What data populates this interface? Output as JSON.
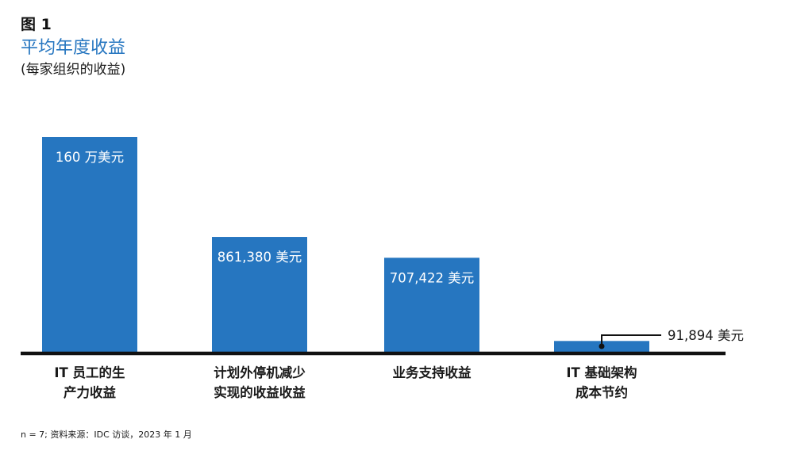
{
  "figure": {
    "label": "图 1",
    "title": "平均年度收益",
    "subtitle": "(每家组织的收益)",
    "footnote": "n = 7; 资料来源：IDC 访谈，2023 年 1 月"
  },
  "colors": {
    "bar": "#2676c0",
    "title": "#2676c0",
    "baseline": "#111111",
    "inside_label": "#ffffff",
    "outside_label": "#1a1a1a"
  },
  "chart_data": {
    "type": "bar",
    "title": "平均年度收益",
    "subtitle": "(每家组织的收益)",
    "categories": [
      [
        "IT 员工的生",
        "产力收益"
      ],
      [
        "计划外停机减少",
        "实现的收益收益"
      ],
      [
        "业务支持收益"
      ],
      [
        "IT 基础架构",
        "成本节约"
      ]
    ],
    "values": [
      1600000,
      861380,
      707422,
      91894
    ],
    "value_labels": [
      "160 万美元",
      "861,380 美元",
      "707,422 美元",
      "91,894 美元"
    ],
    "unit": "美元",
    "ylim": [
      0,
      1600000
    ],
    "xlabel": "",
    "ylabel": "",
    "grid": false,
    "legend": "none"
  }
}
